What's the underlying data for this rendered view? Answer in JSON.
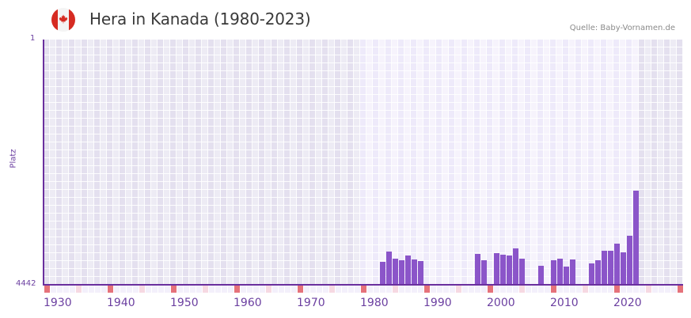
{
  "header": {
    "flag_icon": "canada-flag-icon",
    "title": "Hera in Kanada (1980-2023)",
    "source": "Quelle: Baby-Vornamen.de"
  },
  "axes": {
    "y_top_label": "1",
    "y_bottom_label": "4442",
    "y_title": "Platz",
    "x_ticks": [
      "1930",
      "1940",
      "1950",
      "1960",
      "1970",
      "1980",
      "1990",
      "2000",
      "2010",
      "2020"
    ]
  },
  "colors": {
    "bar": "#8b55c9",
    "axis": "#6a2f9e",
    "decade_marker": "#e5727a",
    "half_decade_marker": "#f6d9e2",
    "plot_background": "#e4e0ef",
    "active_range_background": "#eeeafa"
  },
  "chart_data": {
    "type": "bar",
    "title": "Hera in Kanada (1980-2023)",
    "source": "Quelle: Baby-Vornamen.de",
    "xlabel": "",
    "ylabel": "Platz",
    "ylim": [
      4442,
      1
    ],
    "y_inverted": true,
    "x_range": [
      1930,
      2030
    ],
    "highlight_range": [
      1980,
      2023
    ],
    "x_ticks": [
      1930,
      1940,
      1950,
      1960,
      1970,
      1980,
      1990,
      2000,
      2010,
      2020
    ],
    "grid": true,
    "legend": null,
    "note": "Ranks estimated from bar heights (linear reading of axis 1..4442)",
    "categories": [
      1983,
      1984,
      1985,
      1986,
      1987,
      1988,
      1989,
      1998,
      1999,
      2001,
      2002,
      2003,
      2004,
      2005,
      2008,
      2010,
      2011,
      2012,
      2013,
      2016,
      2017,
      2018,
      2019,
      2020,
      2021,
      2022,
      2023
    ],
    "values": [
      4027,
      3840,
      3969,
      3998,
      3912,
      3984,
      4012,
      3883,
      3998,
      3869,
      3898,
      3912,
      3783,
      3969,
      4098,
      3998,
      3969,
      4112,
      3984,
      4055,
      3998,
      3826,
      3826,
      3697,
      3855,
      3554,
      2737
    ]
  }
}
